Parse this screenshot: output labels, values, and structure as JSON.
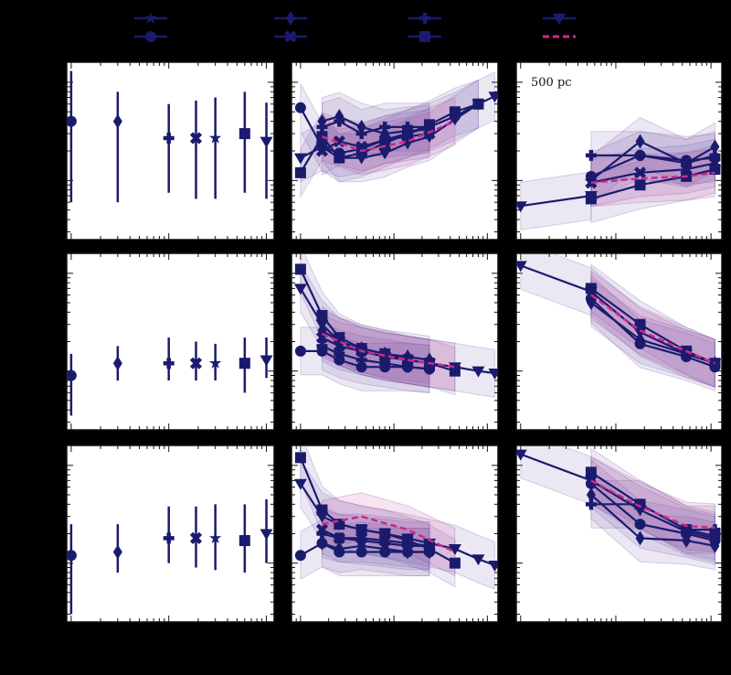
{
  "colors": {
    "figure_bg": "#000000",
    "panel_bg": "#ffffff",
    "series": "#1b1b6e",
    "highlight": "#cc2a8a",
    "band": "#6a4ea0"
  },
  "legend": {
    "entries": [
      {
        "marker": "star"
      },
      {
        "marker": "circle"
      },
      {
        "marker": "diamond"
      },
      {
        "marker": "x"
      },
      {
        "marker": "plus"
      },
      {
        "marker": "square"
      },
      {
        "marker": "triangle-down"
      },
      {
        "marker": "dashed-line",
        "dashed": true
      }
    ]
  },
  "chart_data": [
    {
      "type": "scatter",
      "row": 0,
      "col": 0,
      "log_x": true,
      "log_y": true,
      "xlim": [
        0.9,
        120
      ],
      "ylim": [
        0.0025,
        0.16
      ],
      "points": [
        {
          "marker": "circle",
          "x": 1.0,
          "y": 0.04,
          "lo": 0.006,
          "hi": 0.13
        },
        {
          "marker": "diamond",
          "x": 3.0,
          "y": 0.04,
          "lo": 0.006,
          "hi": 0.08
        },
        {
          "marker": "plus",
          "x": 10,
          "y": 0.027,
          "lo": 0.0075,
          "hi": 0.06
        },
        {
          "marker": "x",
          "x": 19,
          "y": 0.027,
          "lo": 0.0065,
          "hi": 0.065
        },
        {
          "marker": "star",
          "x": 30,
          "y": 0.027,
          "lo": 0.0065,
          "hi": 0.07
        },
        {
          "marker": "square",
          "x": 60,
          "y": 0.03,
          "lo": 0.0075,
          "hi": 0.08
        },
        {
          "marker": "triangle-down",
          "x": 100,
          "y": 0.025,
          "lo": 0.0065,
          "hi": 0.062
        }
      ]
    },
    {
      "type": "line",
      "row": 0,
      "col": 1,
      "log_x": true,
      "log_y": true,
      "xlim": [
        0.8,
        130
      ],
      "ylim": [
        0.0025,
        0.16
      ],
      "series": [
        {
          "marker": "circle",
          "x": [
            1,
            1.7,
            2.6,
            4.5,
            8,
            14,
            24,
            45,
            80
          ],
          "y": [
            0.055,
            0.022,
            0.019,
            0.021,
            0.026,
            0.03,
            0.035,
            0.045,
            0.06
          ]
        },
        {
          "marker": "square",
          "x": [
            1,
            1.7,
            2.6,
            4.5,
            8,
            14,
            24,
            45,
            80
          ],
          "y": [
            0.012,
            0.028,
            0.017,
            0.019,
            0.024,
            0.03,
            0.037,
            0.05,
            0.06
          ]
        },
        {
          "marker": "triangle-down",
          "x": [
            1,
            1.7,
            2.6,
            4.5,
            8,
            14,
            24,
            45,
            80,
            120
          ],
          "y": [
            0.017,
            0.022,
            0.017,
            0.017,
            0.019,
            0.024,
            0.028,
            0.042,
            0.06,
            0.072
          ]
        },
        {
          "marker": "diamond",
          "x": [
            1.7,
            2.6,
            4.5,
            8,
            14,
            24
          ],
          "y": [
            0.04,
            0.045,
            0.035,
            0.03,
            0.032,
            0.033
          ]
        },
        {
          "marker": "plus",
          "x": [
            1.7,
            2.6,
            4.5,
            8,
            14,
            24
          ],
          "y": [
            0.035,
            0.04,
            0.03,
            0.035,
            0.035,
            0.035
          ]
        },
        {
          "marker": "x",
          "x": [
            1.7,
            2.6,
            4.5,
            8,
            14,
            24
          ],
          "y": [
            0.02,
            0.025,
            0.022,
            0.026,
            0.028,
            0.03
          ]
        },
        {
          "marker": "dashed-line",
          "dashed": true,
          "x": [
            1.7,
            4.5,
            14,
            45
          ],
          "y": [
            0.028,
            0.02,
            0.025,
            0.04
          ]
        }
      ]
    },
    {
      "type": "line",
      "row": 0,
      "col": 2,
      "log_x": true,
      "log_y": true,
      "xlim": [
        0.9,
        130
      ],
      "ylim": [
        0.0025,
        0.16
      ],
      "annotations": [
        "500 pc"
      ],
      "series": [
        {
          "marker": "triangle-down",
          "x": [
            1,
            5.5
          ],
          "y": [
            0.0055,
            0.007
          ]
        },
        {
          "marker": "plus",
          "x": [
            5.5,
            18,
            55,
            110
          ],
          "y": [
            0.018,
            0.018,
            0.015,
            0.018
          ]
        },
        {
          "marker": "circle",
          "x": [
            5.5,
            18,
            55,
            110
          ],
          "y": [
            0.011,
            0.018,
            0.016,
            0.017
          ]
        },
        {
          "marker": "diamond",
          "x": [
            5.5,
            18,
            55,
            110
          ],
          "y": [
            0.01,
            0.025,
            0.015,
            0.022
          ]
        },
        {
          "marker": "square",
          "x": [
            5.5,
            18,
            55,
            110
          ],
          "y": [
            0.0065,
            0.009,
            0.011,
            0.013
          ]
        },
        {
          "marker": "x",
          "x": [
            5.5,
            18,
            55,
            110
          ],
          "y": [
            0.0095,
            0.012,
            0.013,
            0.015
          ]
        },
        {
          "marker": "dashed-line",
          "dashed": true,
          "x": [
            5.5,
            18,
            55,
            110
          ],
          "y": [
            0.0095,
            0.0105,
            0.011,
            0.012
          ]
        }
      ]
    },
    {
      "type": "scatter",
      "row": 1,
      "col": 0,
      "log_x": true,
      "log_y": true,
      "xlim": [
        0.9,
        120
      ],
      "ylim": [
        0.0025,
        0.16
      ],
      "points": [
        {
          "marker": "circle",
          "x": 1.0,
          "y": 0.009,
          "lo": 0.0035,
          "hi": 0.015
        },
        {
          "marker": "diamond",
          "x": 3.0,
          "y": 0.012,
          "lo": 0.008,
          "hi": 0.018
        },
        {
          "marker": "plus",
          "x": 10,
          "y": 0.012,
          "lo": 0.008,
          "hi": 0.022
        },
        {
          "marker": "x",
          "x": 19,
          "y": 0.012,
          "lo": 0.008,
          "hi": 0.02
        },
        {
          "marker": "star",
          "x": 30,
          "y": 0.012,
          "lo": 0.008,
          "hi": 0.019
        },
        {
          "marker": "square",
          "x": 60,
          "y": 0.012,
          "lo": 0.006,
          "hi": 0.022
        },
        {
          "marker": "triangle-down",
          "x": 100,
          "y": 0.013,
          "lo": 0.0085,
          "hi": 0.022
        }
      ]
    },
    {
      "type": "line",
      "row": 1,
      "col": 1,
      "log_x": true,
      "log_y": true,
      "xlim": [
        0.8,
        130
      ],
      "ylim": [
        0.0025,
        0.16
      ],
      "series": [
        {
          "marker": "square",
          "x": [
            1,
            1.7,
            2.6,
            4.5,
            8,
            14,
            24,
            45
          ],
          "y": [
            0.11,
            0.037,
            0.022,
            0.017,
            0.015,
            0.013,
            0.012,
            0.01
          ]
        },
        {
          "marker": "triangle-down",
          "x": [
            1,
            1.7,
            2.6,
            4.5,
            8,
            14,
            24,
            45,
            80,
            120
          ],
          "y": [
            0.07,
            0.03,
            0.02,
            0.016,
            0.014,
            0.013,
            0.012,
            0.011,
            0.01,
            0.0095
          ]
        },
        {
          "marker": "circle",
          "x": [
            1,
            1.7,
            2.6,
            4.5,
            8,
            14,
            24
          ],
          "y": [
            0.016,
            0.016,
            0.013,
            0.011,
            0.011,
            0.011,
            0.0105
          ]
        },
        {
          "marker": "diamond",
          "x": [
            1.7,
            2.6,
            4.5,
            8,
            14,
            24
          ],
          "y": [
            0.026,
            0.02,
            0.017,
            0.015,
            0.014,
            0.013
          ]
        },
        {
          "marker": "plus",
          "x": [
            1.7,
            2.6,
            4.5,
            8,
            14,
            24
          ],
          "y": [
            0.018,
            0.015,
            0.013,
            0.012,
            0.011,
            0.0105
          ]
        },
        {
          "marker": "x",
          "x": [
            1.7,
            2.6,
            4.5,
            8,
            14,
            24
          ],
          "y": [
            0.022,
            0.018,
            0.016,
            0.014,
            0.013,
            0.012
          ]
        },
        {
          "marker": "dashed-line",
          "dashed": true,
          "x": [
            1.7,
            4.5,
            14,
            45
          ],
          "y": [
            0.024,
            0.016,
            0.013,
            0.011
          ]
        }
      ]
    },
    {
      "type": "line",
      "row": 1,
      "col": 2,
      "log_x": true,
      "log_y": true,
      "xlim": [
        0.9,
        130
      ],
      "ylim": [
        0.0025,
        0.16
      ],
      "series": [
        {
          "marker": "triangle-down",
          "x": [
            1,
            5.5,
            18,
            55,
            110
          ],
          "y": [
            0.12,
            0.065,
            0.025,
            0.015,
            0.012
          ]
        },
        {
          "marker": "square",
          "x": [
            5.5,
            18,
            55,
            110
          ],
          "y": [
            0.07,
            0.03,
            0.016,
            0.012
          ]
        },
        {
          "marker": "circle",
          "x": [
            5.5,
            18,
            55,
            110
          ],
          "y": [
            0.055,
            0.019,
            0.014,
            0.011
          ]
        },
        {
          "marker": "diamond",
          "x": [
            5.5,
            18,
            55,
            110
          ],
          "y": [
            0.05,
            0.021,
            0.015,
            0.012
          ]
        },
        {
          "marker": "dashed-line",
          "dashed": true,
          "x": [
            5.5,
            18,
            55,
            110
          ],
          "y": [
            0.06,
            0.026,
            0.016,
            0.012
          ]
        }
      ]
    },
    {
      "type": "scatter",
      "row": 2,
      "col": 0,
      "log_x": true,
      "log_y": true,
      "xlim": [
        0.9,
        120
      ],
      "ylim": [
        0.0025,
        0.16
      ],
      "points": [
        {
          "marker": "circle",
          "x": 1.0,
          "y": 0.012,
          "lo": 0.003,
          "hi": 0.025
        },
        {
          "marker": "diamond",
          "x": 3.0,
          "y": 0.013,
          "lo": 0.008,
          "hi": 0.025
        },
        {
          "marker": "plus",
          "x": 10,
          "y": 0.018,
          "lo": 0.01,
          "hi": 0.038
        },
        {
          "marker": "x",
          "x": 19,
          "y": 0.018,
          "lo": 0.009,
          "hi": 0.038
        },
        {
          "marker": "star",
          "x": 30,
          "y": 0.018,
          "lo": 0.0085,
          "hi": 0.04
        },
        {
          "marker": "square",
          "x": 60,
          "y": 0.017,
          "lo": 0.008,
          "hi": 0.04
        },
        {
          "marker": "triangle-down",
          "x": 100,
          "y": 0.02,
          "lo": 0.01,
          "hi": 0.045
        }
      ]
    },
    {
      "type": "line",
      "row": 2,
      "col": 1,
      "log_x": true,
      "log_y": true,
      "xlim": [
        0.8,
        130
      ],
      "ylim": [
        0.0025,
        0.16
      ],
      "series": [
        {
          "marker": "square",
          "x": [
            1,
            1.7,
            2.6,
            4.5,
            8,
            14,
            24,
            45
          ],
          "y": [
            0.12,
            0.035,
            0.025,
            0.022,
            0.02,
            0.017,
            0.014,
            0.01
          ]
        },
        {
          "marker": "triangle-down",
          "x": [
            1,
            1.7,
            2.6,
            4.5,
            8,
            14,
            24,
            45,
            80,
            120
          ],
          "y": [
            0.065,
            0.03,
            0.025,
            0.022,
            0.02,
            0.018,
            0.016,
            0.014,
            0.011,
            0.0095
          ]
        },
        {
          "marker": "circle",
          "x": [
            1,
            1.7,
            2.6,
            4.5,
            8,
            14,
            24
          ],
          "y": [
            0.012,
            0.016,
            0.013,
            0.013,
            0.013,
            0.013,
            0.013
          ]
        },
        {
          "marker": "diamond",
          "x": [
            1.7,
            2.6,
            4.5,
            8,
            14,
            24
          ],
          "y": [
            0.016,
            0.014,
            0.015,
            0.014,
            0.013,
            0.013
          ]
        },
        {
          "marker": "plus",
          "x": [
            1.7,
            2.6,
            4.5,
            8,
            14,
            24
          ],
          "y": [
            0.02,
            0.018,
            0.017,
            0.016,
            0.015,
            0.015
          ]
        },
        {
          "marker": "x",
          "x": [
            1.7,
            2.6,
            4.5,
            8,
            14,
            24
          ],
          "y": [
            0.022,
            0.018,
            0.018,
            0.017,
            0.016,
            0.015
          ]
        },
        {
          "marker": "dashed-line",
          "dashed": true,
          "x": [
            1.7,
            4.5,
            14,
            45
          ],
          "y": [
            0.025,
            0.03,
            0.022,
            0.013
          ]
        }
      ]
    },
    {
      "type": "line",
      "row": 2,
      "col": 2,
      "log_x": true,
      "log_y": true,
      "xlim": [
        0.9,
        130
      ],
      "ylim": [
        0.0025,
        0.16
      ],
      "series": [
        {
          "marker": "triangle-down",
          "x": [
            1,
            5.5,
            18,
            55,
            110
          ],
          "y": [
            0.13,
            0.07,
            0.035,
            0.021,
            0.018
          ]
        },
        {
          "marker": "square",
          "x": [
            5.5,
            18,
            55,
            110
          ],
          "y": [
            0.085,
            0.04,
            0.022,
            0.019
          ]
        },
        {
          "marker": "plus",
          "x": [
            5.5,
            18,
            55,
            110
          ],
          "y": [
            0.04,
            0.04,
            0.022,
            0.022
          ]
        },
        {
          "marker": "circle",
          "x": [
            5.5,
            18,
            55,
            110
          ],
          "y": [
            0.065,
            0.025,
            0.02,
            0.017
          ]
        },
        {
          "marker": "diamond",
          "x": [
            5.5,
            18,
            55,
            110
          ],
          "y": [
            0.05,
            0.018,
            0.017,
            0.015
          ]
        },
        {
          "marker": "dashed-line",
          "dashed": true,
          "x": [
            5.5,
            18,
            55,
            110
          ],
          "y": [
            0.07,
            0.038,
            0.024,
            0.023
          ]
        }
      ]
    }
  ]
}
